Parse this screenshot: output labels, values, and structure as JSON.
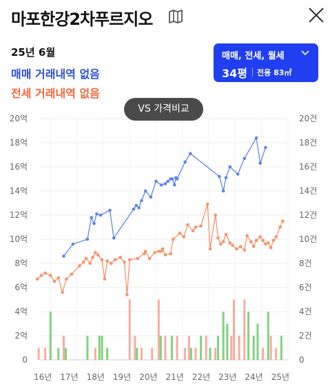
{
  "header": {
    "title": "마포한강2차푸르지오",
    "map_icon": "map-icon",
    "close_icon": "close-icon"
  },
  "summary": {
    "date": "25년 6월",
    "sale_text": "매매 거래내역 없음",
    "rent_text": "전세 거래내역 없음"
  },
  "filter": {
    "types": "매매, 전세, 월세",
    "size": "34평",
    "area": "전용 83㎡"
  },
  "vs_button": "VS 가격비교",
  "colors": {
    "sale": "#5b85ec",
    "rent": "#f6936a",
    "accent": "#1f3ff0",
    "vol_green": "#6fcf6f",
    "vol_pink": "#f7a396",
    "vol_blue": "#7f94ee"
  },
  "chart_data": {
    "type": "line",
    "x_ticks": [
      "16년",
      "17년",
      "18년",
      "19년",
      "20년",
      "21년",
      "22년",
      "23년",
      "24년",
      "25년"
    ],
    "y_left_ticks": [
      "0",
      "2억",
      "4억",
      "6억",
      "8억",
      "10억",
      "12억",
      "14억",
      "16억",
      "18억",
      "20억"
    ],
    "y_right_ticks": [
      "0",
      "2건",
      "4건",
      "6건",
      "8건",
      "10건",
      "12건",
      "14건",
      "16건",
      "18건",
      "20건"
    ],
    "y_left_range": [
      0,
      20
    ],
    "y_right_range": [
      0,
      20
    ],
    "x_range": [
      2016.0,
      2025.5
    ],
    "grid": true,
    "series": [
      {
        "role": "sale",
        "x": [
          2017.0,
          2017.35,
          2017.9,
          2018.05,
          2018.15,
          2018.25,
          2018.4,
          2018.75,
          2018.9,
          2019.65,
          2019.75,
          2019.85,
          2019.95,
          2020.1,
          2020.3,
          2020.5,
          2020.7,
          2020.85,
          2020.95,
          2021.05,
          2021.12,
          2021.2,
          2021.25,
          2021.3,
          2021.6,
          2021.8,
          2022.9,
          2023.05,
          2023.15,
          2023.3,
          2023.6,
          2023.85,
          2024.3,
          2024.45,
          2024.65
        ],
        "y": [
          8.6,
          9.6,
          10.0,
          11.8,
          11.3,
          12.1,
          12.0,
          12.4,
          10.1,
          12.5,
          12.8,
          12.6,
          13.2,
          14.0,
          13.5,
          14.8,
          14.5,
          14.6,
          14.8,
          15.0,
          15.0,
          14.5,
          15.1,
          15.0,
          16.4,
          17.1,
          15.2,
          14.0,
          15.1,
          16.0,
          15.4,
          16.7,
          18.4,
          16.3,
          17.6
        ]
      },
      {
        "role": "rent",
        "x": [
          2016.0,
          2016.15,
          2016.3,
          2016.5,
          2016.65,
          2016.8,
          2016.95,
          2017.1,
          2017.3,
          2017.6,
          2017.75,
          2017.85,
          2018.0,
          2018.1,
          2018.2,
          2018.3,
          2018.45,
          2018.55,
          2018.65,
          2018.8,
          2018.95,
          2019.15,
          2019.3,
          2019.4,
          2019.5,
          2019.8,
          2020.05,
          2020.1,
          2020.25,
          2020.45,
          2020.6,
          2020.7,
          2020.75,
          2020.85,
          2021.05,
          2021.15,
          2021.4,
          2021.55,
          2021.7,
          2021.9,
          2022.0,
          2022.2,
          2022.45,
          2022.55,
          2022.75,
          2022.85,
          2022.95,
          2023.05,
          2023.15,
          2023.3,
          2023.4,
          2023.55,
          2023.7,
          2023.85,
          2023.95,
          2024.1,
          2024.2,
          2024.3,
          2024.45,
          2024.55,
          2024.65,
          2024.75,
          2024.85,
          2024.95,
          2025.05,
          2025.2,
          2025.3
        ],
        "y": [
          6.7,
          7.0,
          7.2,
          7.0,
          6.5,
          6.8,
          5.6,
          6.7,
          7.1,
          7.8,
          8.1,
          8.4,
          8.0,
          8.5,
          8.9,
          8.7,
          8.3,
          6.7,
          8.2,
          8.0,
          8.3,
          8.5,
          8.1,
          5.4,
          8.3,
          8.4,
          8.8,
          9.0,
          8.4,
          8.9,
          9.0,
          9.0,
          9.2,
          8.7,
          8.8,
          10.0,
          10.5,
          10.2,
          11.2,
          10.7,
          11.0,
          11.1,
          12.9,
          9.2,
          12.0,
          10.1,
          9.6,
          9.8,
          10.4,
          9.7,
          9.5,
          9.2,
          9.4,
          9.1,
          10.3,
          9.8,
          9.4,
          9.9,
          10.2,
          9.9,
          9.6,
          9.7,
          9.3,
          9.9,
          10.2,
          11.0,
          11.5
        ]
      }
    ],
    "volume": {
      "x": [
        2016.05,
        2016.3,
        2016.5,
        2016.8,
        2017.0,
        2017.25,
        2017.55,
        2017.9,
        2018.2,
        2018.35,
        2018.45,
        2018.65,
        2019.05,
        2019.4,
        2019.5,
        2019.7,
        2019.95,
        2020.35,
        2020.6,
        2020.85,
        2021.1,
        2021.3,
        2021.6,
        2021.75,
        2022.0,
        2022.2,
        2022.4,
        2022.55,
        2022.75,
        2022.85,
        2023.05,
        2023.2,
        2023.35,
        2023.45,
        2023.65,
        2023.85,
        2024.0,
        2024.2,
        2024.35,
        2024.55,
        2024.75,
        2024.85,
        2025.05,
        2025.25
      ],
      "total": [
        1,
        1,
        4,
        1,
        2,
        0,
        0,
        2,
        1,
        2,
        2,
        1,
        0,
        0,
        5,
        2,
        1,
        1,
        5,
        2,
        2,
        2,
        1,
        2,
        1,
        2,
        2,
        1,
        1,
        2,
        4,
        3,
        2,
        5,
        2,
        5,
        4,
        2,
        3,
        1,
        4,
        2,
        1,
        2
      ],
      "green": [
        0,
        0,
        4,
        1,
        1,
        0,
        0,
        2,
        0,
        2,
        2,
        1,
        0,
        0,
        0,
        1,
        0,
        0,
        2,
        0,
        2,
        0,
        0,
        1,
        0,
        2,
        0,
        1,
        0,
        2,
        4,
        3,
        0,
        0,
        0,
        0,
        4,
        2,
        3,
        0,
        4,
        0,
        0,
        2
      ],
      "pink": [
        1,
        1,
        0,
        0,
        1,
        0,
        0,
        0,
        1,
        0,
        0,
        0,
        0,
        0,
        5,
        1,
        1,
        1,
        3,
        2,
        0,
        2,
        1,
        1,
        1,
        0,
        2,
        0,
        1,
        0,
        0,
        0,
        2,
        5,
        2,
        5,
        0,
        0,
        0,
        1,
        0,
        2,
        1,
        0
      ]
    }
  }
}
